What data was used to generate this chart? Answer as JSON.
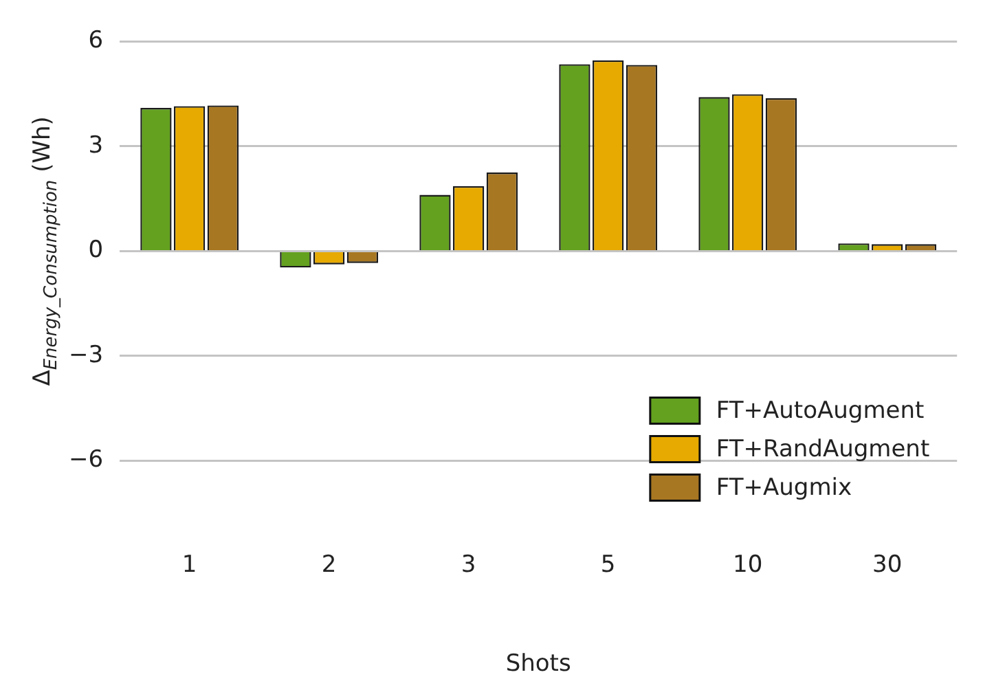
{
  "chart_data": {
    "type": "bar",
    "xlabel": "Shots",
    "ylabel": "Δ$_{Energy_Consumption}$ (Wh)",
    "categories": [
      "1",
      "2",
      "3",
      "5",
      "10",
      "30"
    ],
    "series": [
      {
        "name": "FT+AutoAugment",
        "color": "#63a11f",
        "values": [
          4.1,
          -0.47,
          1.61,
          5.35,
          4.41,
          0.22
        ]
      },
      {
        "name": "FT+RandAugment",
        "color": "#e6aa00",
        "values": [
          4.15,
          -0.38,
          1.86,
          5.46,
          4.49,
          0.2
        ]
      },
      {
        "name": "FT+Augmix",
        "color": "#a87722",
        "values": [
          4.17,
          -0.34,
          2.25,
          5.33,
          4.38,
          0.2
        ]
      }
    ],
    "ylim": [
      -6,
      6
    ],
    "yticks": [
      {
        "value": 6,
        "label": "6"
      },
      {
        "value": 3,
        "label": "3"
      },
      {
        "value": 0,
        "label": "0"
      },
      {
        "value": -3,
        "label": "−3"
      },
      {
        "value": -6,
        "label": "−6"
      }
    ],
    "grid": "y",
    "legend": "bottom right"
  }
}
